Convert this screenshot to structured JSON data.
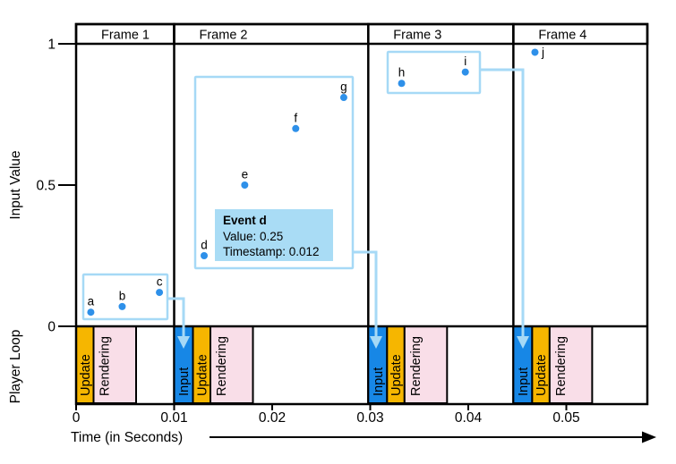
{
  "colors": {
    "input": "#1787E6",
    "update": "#F6B600",
    "rendering": "#F9DEE8",
    "point": "#2E90E9",
    "light_blue": "#A6D9F6",
    "tooltip_bg": "#A9DCF5",
    "line": "#000000"
  },
  "chart_data": {
    "type": "scatter",
    "title": "",
    "x_axis": {
      "title": "Time (in Seconds)",
      "range": [
        0,
        0.058
      ],
      "ticks": [
        {
          "label": "0",
          "value": 0
        },
        {
          "label": "0.01",
          "value": 0.01
        },
        {
          "label": "0.02",
          "value": 0.02
        },
        {
          "label": "0.03",
          "value": 0.03
        },
        {
          "label": "0.04",
          "value": 0.04
        },
        {
          "label": "0.05",
          "value": 0.05
        }
      ]
    },
    "y_axis": {
      "title": "Input Value",
      "range": [
        0,
        1
      ],
      "ticks": [
        {
          "label": "1",
          "value": 1
        },
        {
          "label": "0.5",
          "value": 0.5
        },
        {
          "label": "0",
          "value": 0
        }
      ]
    },
    "frames": [
      {
        "label": "Frame 1",
        "start_t": 0
      },
      {
        "label": "Frame 2",
        "start_t": 0.01
      },
      {
        "label": "Frame 3",
        "start_t": 0.0298
      },
      {
        "label": "Frame 4",
        "start_t": 0.0446
      }
    ],
    "points": [
      {
        "name": "a",
        "t": 0.0015,
        "value": 0.05,
        "label_side": "top"
      },
      {
        "name": "b",
        "t": 0.0047,
        "value": 0.07,
        "label_side": "top"
      },
      {
        "name": "c",
        "t": 0.0085,
        "value": 0.12,
        "label_side": "top"
      },
      {
        "name": "d",
        "t": 0.012,
        "value": 0.25,
        "label_side": "top"
      },
      {
        "name": "e",
        "t": 0.0172,
        "value": 0.5,
        "label_side": "top"
      },
      {
        "name": "f",
        "t": 0.0224,
        "value": 0.7,
        "label_side": "top"
      },
      {
        "name": "g",
        "t": 0.0273,
        "value": 0.81,
        "label_side": "top"
      },
      {
        "name": "h",
        "t": 0.0332,
        "value": 0.86,
        "label_side": "top"
      },
      {
        "name": "i",
        "t": 0.0397,
        "value": 0.9,
        "label_side": "top"
      },
      {
        "name": "j",
        "t": 0.0468,
        "value": 0.97,
        "label_side": "right"
      }
    ],
    "event_groups": [
      {
        "events": [
          "a",
          "b",
          "c"
        ],
        "delivered_at_t": 0.01
      },
      {
        "events": [
          "d",
          "e",
          "f",
          "g"
        ],
        "delivered_at_t": 0.0298
      },
      {
        "events": [
          "h",
          "i"
        ],
        "delivered_at_t": 0.0446
      }
    ],
    "player_loop": {
      "title": "Player Loop",
      "frames": [
        {
          "segments": [
            "Update",
            "Rendering"
          ]
        },
        {
          "segments": [
            "Input",
            "Update",
            "Rendering"
          ]
        },
        {
          "segments": [
            "Input",
            "Update",
            "Rendering"
          ]
        },
        {
          "segments": [
            "Input",
            "Update",
            "Rendering"
          ]
        }
      ]
    }
  },
  "tooltip": {
    "title": "Event d",
    "lines": [
      "Value: 0.25",
      "Timestamp: 0.012"
    ]
  }
}
